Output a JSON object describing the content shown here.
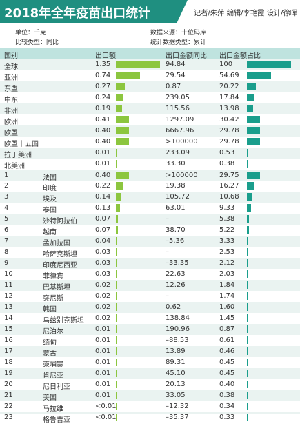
{
  "header": {
    "title": "2018年全年疫苗出口统计",
    "credits": "记者/朱萍  编辑/李艳霞  设计/徐晖"
  },
  "meta": {
    "unit": "单位：千克",
    "compare_type": "比较类型：同比",
    "source": "数据来源：十位码库",
    "stat_type": "统计数据类型：累计"
  },
  "colors": {
    "volume_bar": "#8cc63f",
    "share_bar": "#1a9e8c",
    "header_bg": "#bfe3df",
    "title_bg": "#1f8f80"
  },
  "chart_data": {
    "type": "table",
    "columns": [
      "国别",
      "出口额",
      "出口金额同比",
      "出口金额占比"
    ],
    "regions": [
      {
        "name": "全球",
        "export": "1.35",
        "export_value": 1.35,
        "yoy": "94.84",
        "share": "100",
        "share_value": 100
      },
      {
        "name": "亚洲",
        "export": "0.74",
        "export_value": 0.74,
        "yoy": "29.54",
        "share": "54.69",
        "share_value": 54.69
      },
      {
        "name": "东盟",
        "export": "0.27",
        "export_value": 0.27,
        "yoy": "0.87",
        "share": "20.22",
        "share_value": 20.22
      },
      {
        "name": "中东",
        "export": "0.24",
        "export_value": 0.24,
        "yoy": "239.05",
        "share": "17.84",
        "share_value": 17.84
      },
      {
        "name": "非洲",
        "export": "0.19",
        "export_value": 0.19,
        "yoy": "115.56",
        "share": "13.98",
        "share_value": 13.98
      },
      {
        "name": "欧洲",
        "export": "0.41",
        "export_value": 0.41,
        "yoy": "1297.09",
        "share": "30.42",
        "share_value": 30.42
      },
      {
        "name": "欧盟",
        "export": "0.40",
        "export_value": 0.4,
        "yoy": "6667.96",
        "share": "29.78",
        "share_value": 29.78
      },
      {
        "name": "欧盟十五国",
        "export": "0.40",
        "export_value": 0.4,
        "yoy": ">100000",
        "share": "29.78",
        "share_value": 29.78
      },
      {
        "name": "拉丁美洲",
        "export": "0.01",
        "export_value": 0.01,
        "yoy": "233.09",
        "share": "0.53",
        "share_value": 0.53
      },
      {
        "name": "北美洲",
        "export": "0.01",
        "export_value": 0.01,
        "yoy": "33.30",
        "share": "0.38",
        "share_value": 0.38
      }
    ],
    "countries": [
      {
        "rank": "1",
        "name": "法国",
        "export": "0.40",
        "export_value": 0.4,
        "yoy": ">100000",
        "share": "29.75",
        "share_value": 29.75
      },
      {
        "rank": "2",
        "name": "印度",
        "export": "0.22",
        "export_value": 0.22,
        "yoy": "19.38",
        "share": "16.27",
        "share_value": 16.27
      },
      {
        "rank": "3",
        "name": "埃及",
        "export": "0.14",
        "export_value": 0.14,
        "yoy": "105.72",
        "share": "10.68",
        "share_value": 10.68
      },
      {
        "rank": "4",
        "name": "泰国",
        "export": "0.13",
        "export_value": 0.13,
        "yoy": "63.01",
        "share": "9.33",
        "share_value": 9.33
      },
      {
        "rank": "5",
        "name": "沙特阿拉伯",
        "export": "0.07",
        "export_value": 0.07,
        "yoy": "–",
        "share": "5.38",
        "share_value": 5.38
      },
      {
        "rank": "6",
        "name": "越南",
        "export": "0.07",
        "export_value": 0.07,
        "yoy": "38.70",
        "share": "5.22",
        "share_value": 5.22
      },
      {
        "rank": "7",
        "name": "孟加拉国",
        "export": "0.04",
        "export_value": 0.04,
        "yoy": "–5.36",
        "share": "3.33",
        "share_value": 3.33
      },
      {
        "rank": "8",
        "name": "哈萨克斯坦",
        "export": "0.03",
        "export_value": 0.03,
        "yoy": "–",
        "share": "2.53",
        "share_value": 2.53
      },
      {
        "rank": "9",
        "name": "印度尼西亚",
        "export": "0.03",
        "export_value": 0.03,
        "yoy": "–33.35",
        "share": "2.12",
        "share_value": 2.12
      },
      {
        "rank": "10",
        "name": "菲律宾",
        "export": "0.03",
        "export_value": 0.03,
        "yoy": "22.63",
        "share": "2.03",
        "share_value": 2.03
      },
      {
        "rank": "11",
        "name": "巴基斯坦",
        "export": "0.02",
        "export_value": 0.02,
        "yoy": "12.26",
        "share": "1.84",
        "share_value": 1.84
      },
      {
        "rank": "12",
        "name": "突尼斯",
        "export": "0.02",
        "export_value": 0.02,
        "yoy": "–",
        "share": "1.74",
        "share_value": 1.74
      },
      {
        "rank": "13",
        "name": "韩国",
        "export": "0.02",
        "export_value": 0.02,
        "yoy": "0.62",
        "share": "1.60",
        "share_value": 1.6
      },
      {
        "rank": "14",
        "name": "乌兹别克斯坦",
        "export": "0.02",
        "export_value": 0.02,
        "yoy": "138.84",
        "share": "1.45",
        "share_value": 1.45
      },
      {
        "rank": "15",
        "name": "尼泊尔",
        "export": "0.01",
        "export_value": 0.01,
        "yoy": "190.96",
        "share": "0.87",
        "share_value": 0.87
      },
      {
        "rank": "16",
        "name": "缅甸",
        "export": "0.01",
        "export_value": 0.01,
        "yoy": "–88.53",
        "share": "0.61",
        "share_value": 0.61
      },
      {
        "rank": "17",
        "name": "蒙古",
        "export": "0.01",
        "export_value": 0.01,
        "yoy": "13.89",
        "share": "0.46",
        "share_value": 0.46
      },
      {
        "rank": "18",
        "name": "柬埔寨",
        "export": "0.01",
        "export_value": 0.01,
        "yoy": "89.31",
        "share": "0.45",
        "share_value": 0.45
      },
      {
        "rank": "19",
        "name": "肯尼亚",
        "export": "0.01",
        "export_value": 0.01,
        "yoy": "45.10",
        "share": "0.45",
        "share_value": 0.45
      },
      {
        "rank": "20",
        "name": "尼日利亚",
        "export": "0.01",
        "export_value": 0.01,
        "yoy": "20.13",
        "share": "0.40",
        "share_value": 0.4
      },
      {
        "rank": "21",
        "name": "美国",
        "export": "0.01",
        "export_value": 0.01,
        "yoy": "33.05",
        "share": "0.38",
        "share_value": 0.38
      },
      {
        "rank": "22",
        "name": "马拉维",
        "export": "<0.01",
        "export_value": 0.004,
        "yoy": "–12.32",
        "share": "0.34",
        "share_value": 0.34
      },
      {
        "rank": "23",
        "name": "格鲁吉亚",
        "export": "<0.01",
        "export_value": 0.004,
        "yoy": "–35.37",
        "share": "0.33",
        "share_value": 0.33
      }
    ]
  }
}
